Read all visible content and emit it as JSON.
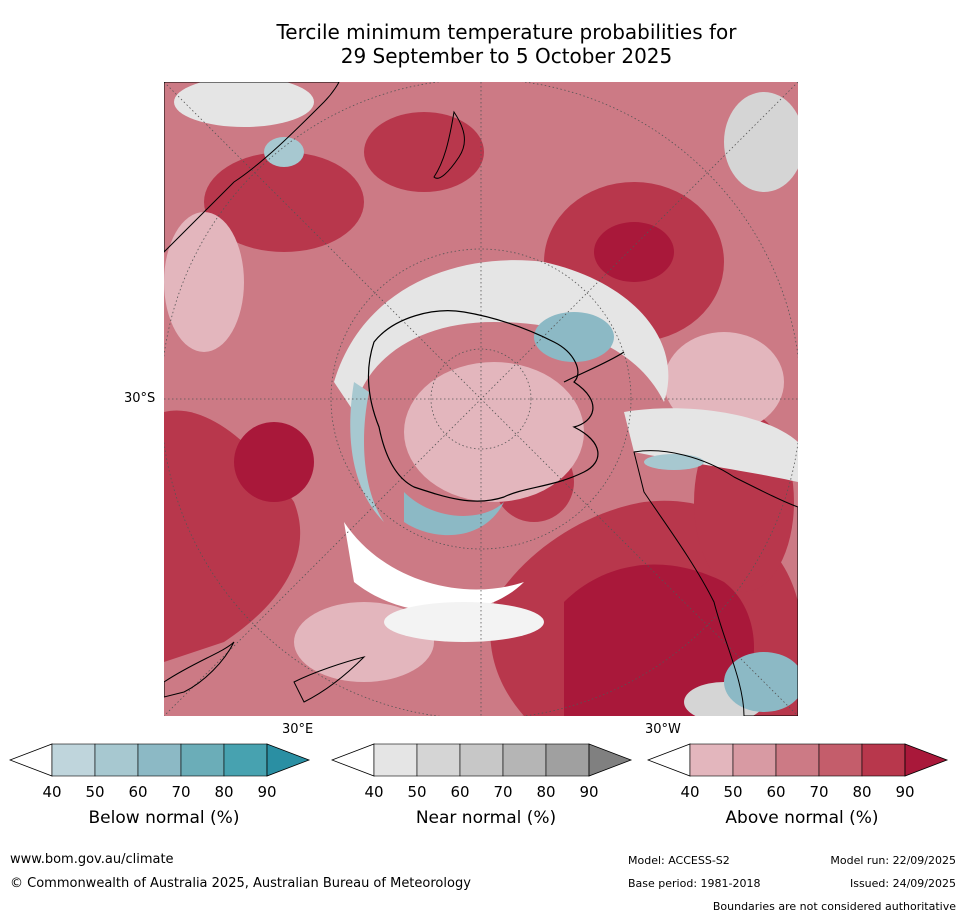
{
  "title": {
    "line1": "Tercile minimum temperature probabilities for",
    "line2": "29 September to 5 October 2025"
  },
  "map": {
    "projection": "south-polar-stereographic",
    "labels": {
      "lat": "30°S",
      "lon_east": "30°E",
      "lon_west": "30°W"
    },
    "colors": {
      "land_outline": "#000000",
      "graticule": "#555555"
    }
  },
  "legends": [
    {
      "title": "Below normal (%)",
      "ticks": [
        "40",
        "50",
        "60",
        "70",
        "80",
        "90"
      ],
      "colors": [
        "#ffffff",
        "#bfd5dc",
        "#a7c8d0",
        "#8cb9c5",
        "#6badb8",
        "#47a2b0",
        "#2a8fa3"
      ]
    },
    {
      "title": "Near normal (%)",
      "ticks": [
        "40",
        "50",
        "60",
        "70",
        "80",
        "90"
      ],
      "colors": [
        "#ffffff",
        "#e5e5e5",
        "#d5d5d5",
        "#c7c7c7",
        "#b5b5b5",
        "#a0a0a0",
        "#808080"
      ]
    },
    {
      "title": "Above normal (%)",
      "ticks": [
        "40",
        "50",
        "60",
        "70",
        "80",
        "90"
      ],
      "colors": [
        "#ffffff",
        "#e3b6bd",
        "#d89aa3",
        "#cc7a85",
        "#c45d6b",
        "#b8374c",
        "#a9183a"
      ]
    }
  ],
  "footer": {
    "url": "www.bom.gov.au/climate",
    "copyright": "© Commonwealth of Australia 2025, Australian Bureau of Meteorology",
    "model": "Model: ACCESS-S2",
    "model_run": "Model run: 22/09/2025",
    "base_period": "Base period: 1981-2018",
    "issued": "Issued: 24/09/2025",
    "disclaimer": "Boundaries are not considered authoritative"
  }
}
